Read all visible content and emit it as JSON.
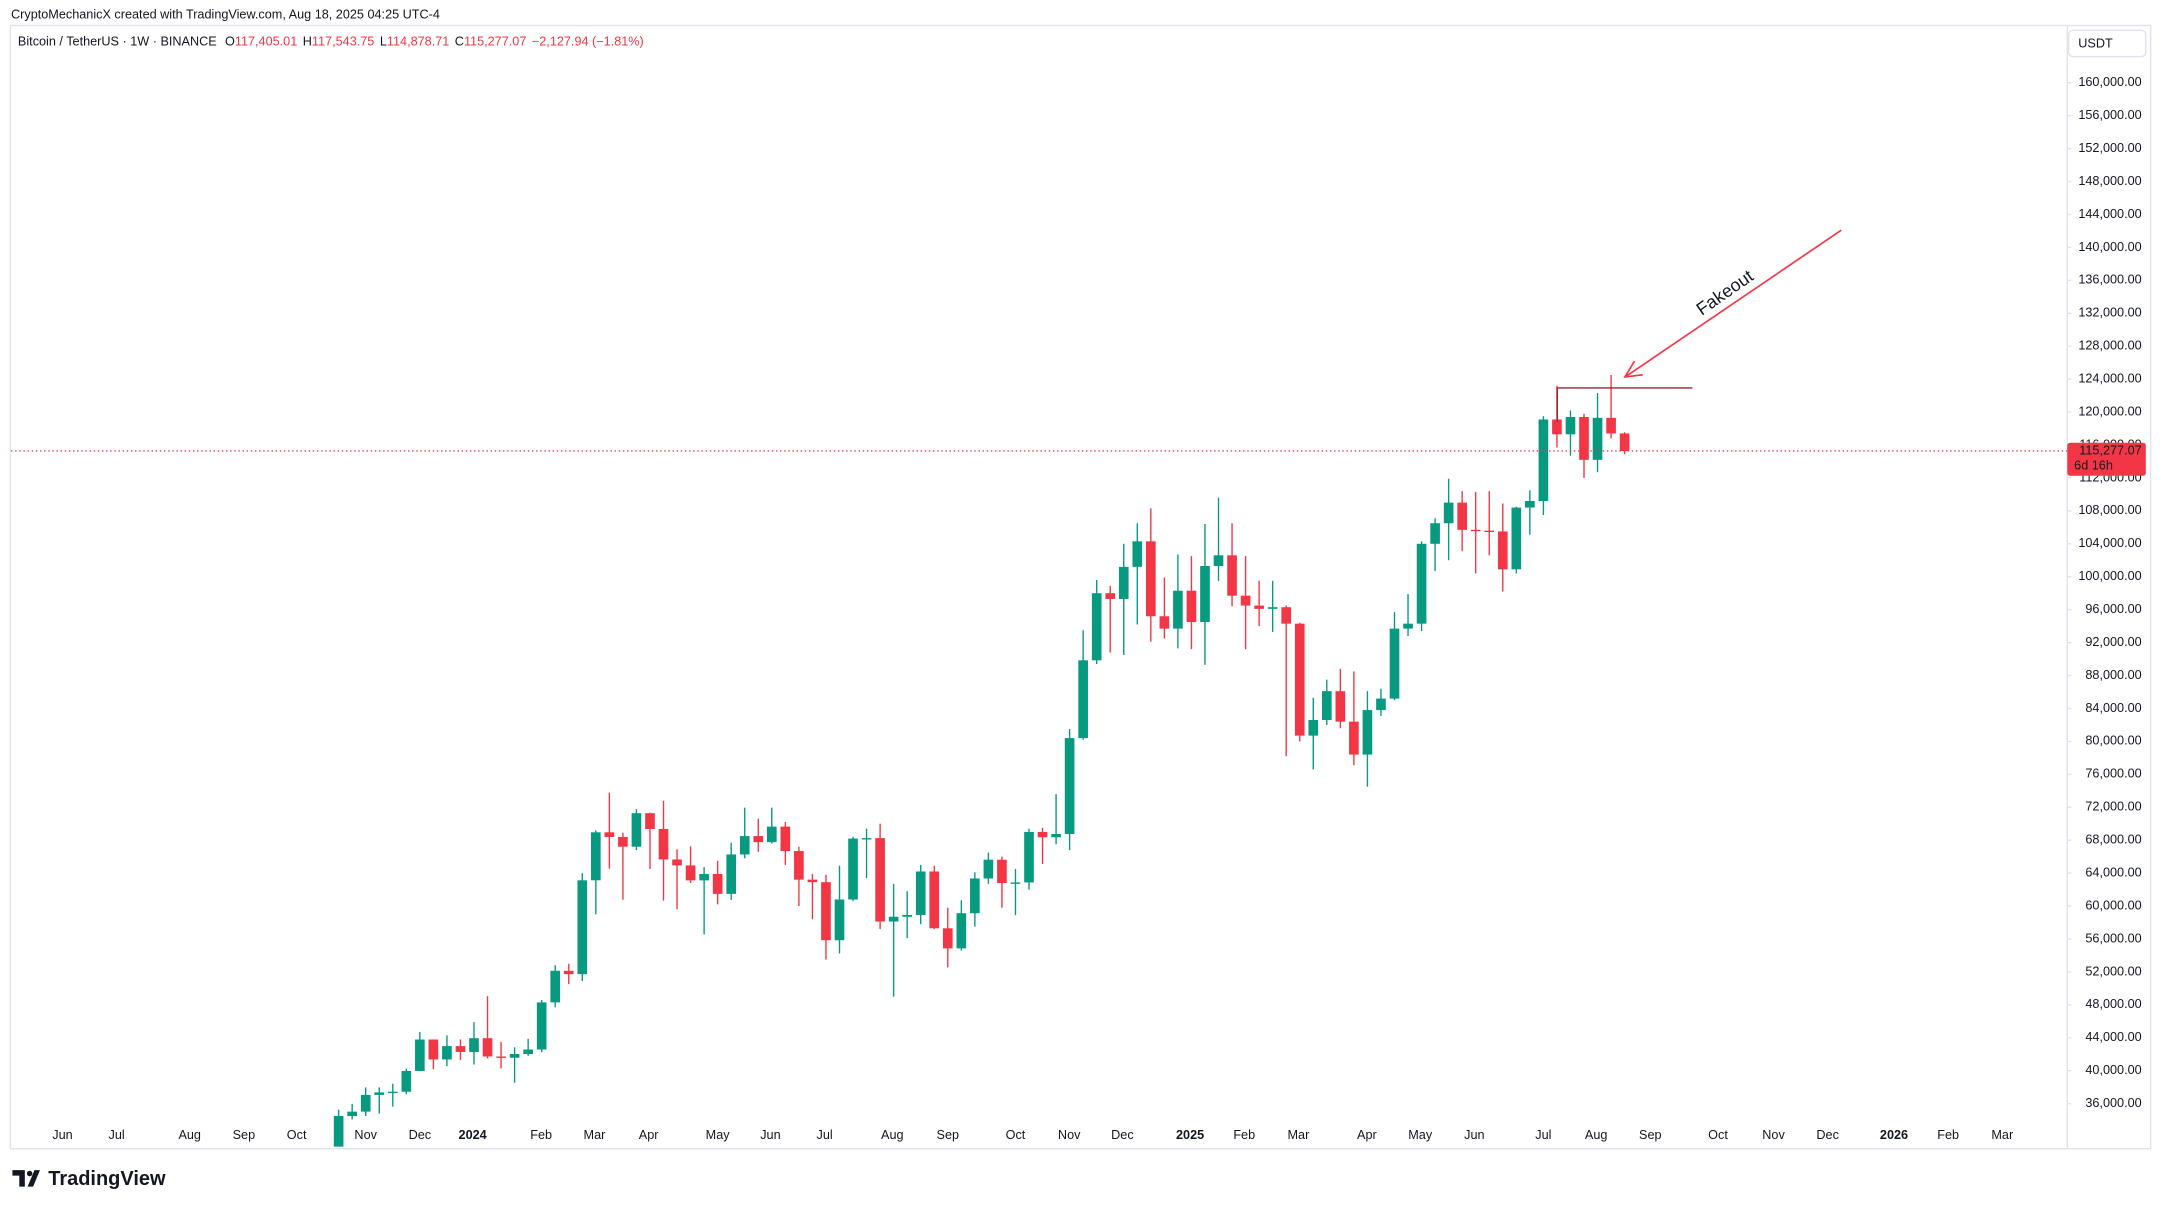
{
  "header": {
    "attribution": "CryptoMechanicX created with TradingView.com, Aug 18, 2025 04:25 UTC-4",
    "logo": "TradingView"
  },
  "chart_data": {
    "type": "candlestick",
    "title": "Bitcoin / TetherUS · 1W · BINANCE",
    "ohlc_legend": [
      {
        "key": "O",
        "value": "117,405.01"
      },
      {
        "key": "H",
        "value": "117,543.75"
      },
      {
        "key": "L",
        "value": "114,878.71"
      },
      {
        "key": "C",
        "value": "115,277.07"
      }
    ],
    "change": "−2,127.94 (−1.81%)",
    "currency": "USDT",
    "last_price_label": "115,277.07",
    "countdown": "6d 16h",
    "up_color": "#089981",
    "down_color": "#f23645",
    "annotations": [
      {
        "text": "Fakeout",
        "color": "#f23645"
      }
    ],
    "open": [
      29990,
      34500,
      35030,
      37060,
      37370,
      37450,
      39970,
      43790,
      41370,
      42990,
      42280,
      43950,
      41730,
      41580,
      42030,
      42580,
      48300,
      52140,
      51730,
      63130,
      68960,
      68390,
      67210,
      71280,
      69360,
      65660,
      64940,
      63120,
      63900,
      61480,
      66270,
      68500,
      67760,
      69650,
      66680,
      63210,
      62900,
      55850,
      60800,
      68200,
      68250,
      58120,
      58700,
      58920,
      64200,
      57300,
      54860,
      59130,
      63350,
      65630,
      62800,
      62870,
      69000,
      68360,
      68750,
      80400,
      89850,
      98000,
      97300,
      101200,
      104300,
      95200,
      93700,
      98300,
      94500,
      101300,
      102600,
      97700,
      96500,
      96100,
      96300,
      94300,
      80700,
      82600,
      86100,
      82400,
      78400,
      83800,
      85200,
      93700,
      94300,
      104000,
      106500,
      109000,
      105700,
      105600,
      105500,
      100900,
      108400,
      109200,
      119100,
      117300,
      119400,
      114200,
      119300,
      117405.01
    ],
    "high": [
      35280,
      35980,
      37970,
      37980,
      38420,
      40250,
      44700,
      43800,
      44300,
      43800,
      45900,
      49050,
      43500,
      42840,
      43880,
      48600,
      52820,
      52990,
      64000,
      69200,
      73780,
      68920,
      71770,
      71340,
      72800,
      66900,
      67250,
      64730,
      65500,
      67700,
      71950,
      70600,
      71950,
      70200,
      67200,
      63900,
      63800,
      64900,
      68400,
      69400,
      70000,
      62700,
      61800,
      65000,
      64900,
      59800,
      60700,
      64100,
      66500,
      66000,
      64500,
      69400,
      69500,
      73600,
      81500,
      93500,
      99600,
      98900,
      104000,
      106500,
      108300,
      99900,
      102700,
      102500,
      106400,
      109600,
      106500,
      102500,
      99500,
      99500,
      96500,
      94400,
      85300,
      87500,
      88800,
      88500,
      86100,
      86400,
      95700,
      97900,
      104300,
      107100,
      111900,
      110400,
      110300,
      110400,
      108900,
      108500,
      110500,
      119500,
      123200,
      120200,
      119800,
      122300,
      124500,
      117543.75
    ],
    "low": [
      29900,
      34100,
      34500,
      34800,
      35630,
      37150,
      39950,
      40200,
      40550,
      41300,
      40750,
      41500,
      40280,
      38550,
      41800,
      42250,
      47700,
      50520,
      50900,
      59000,
      64550,
      60770,
      66800,
      64500,
      60660,
      59600,
      62800,
      56550,
      60200,
      60750,
      65800,
      66600,
      67600,
      65000,
      60000,
      58400,
      53500,
      54250,
      60600,
      63400,
      57200,
      49000,
      56100,
      57800,
      57200,
      52550,
      54600,
      57500,
      62700,
      59800,
      58900,
      62000,
      65100,
      67500,
      66800,
      80200,
      89400,
      90800,
      90500,
      94200,
      92100,
      92500,
      91300,
      91200,
      89300,
      99500,
      96400,
      91200,
      94000,
      93300,
      78200,
      80000,
      76600,
      82000,
      81600,
      77100,
      74500,
      83100,
      85000,
      92800,
      93400,
      100700,
      102000,
      103100,
      100400,
      102600,
      98200,
      100400,
      105100,
      107500,
      115700,
      114700,
      112000,
      112700,
      116800,
      114878.71
    ],
    "close": [
      34500,
      35030,
      37060,
      37370,
      37450,
      39970,
      43790,
      41370,
      42990,
      42280,
      43950,
      41730,
      41580,
      42030,
      42580,
      48300,
      52140,
      51730,
      63130,
      68960,
      68390,
      67210,
      71280,
      69360,
      65660,
      64940,
      63120,
      63900,
      61480,
      66270,
      68500,
      67760,
      69650,
      66680,
      63210,
      62900,
      55850,
      60800,
      68200,
      68250,
      58120,
      58700,
      58920,
      64200,
      57300,
      54860,
      59130,
      63350,
      65630,
      62800,
      62870,
      69000,
      68360,
      68750,
      80400,
      89850,
      98000,
      97300,
      101200,
      104300,
      95200,
      93700,
      98300,
      94500,
      101300,
      102600,
      97700,
      96500,
      96100,
      96300,
      94300,
      80700,
      82600,
      86100,
      82400,
      78400,
      83800,
      85200,
      93700,
      94300,
      104000,
      106500,
      109000,
      105700,
      105600,
      105500,
      100900,
      108400,
      109200,
      119100,
      117300,
      119400,
      114200,
      119300,
      117400,
      115277.07
    ],
    "xlim": [
      -24.2,
      127.7
    ],
    "xticks": [
      {
        "value": -20.4,
        "label": "Jun"
      },
      {
        "value": -16.4,
        "label": "Jul"
      },
      {
        "value": -11.0,
        "label": "Aug"
      },
      {
        "value": -7.0,
        "label": "Sep"
      },
      {
        "value": -3.1,
        "label": "Oct"
      },
      {
        "value": 2.0,
        "label": "Nov"
      },
      {
        "value": 6.0,
        "label": "Dec"
      },
      {
        "value": 9.9,
        "label": "2024"
      },
      {
        "value": 14.96,
        "label": "Feb"
      },
      {
        "value": 18.9,
        "label": "Mar"
      },
      {
        "value": 22.9,
        "label": "Apr"
      },
      {
        "value": 28.0,
        "label": "May"
      },
      {
        "value": 31.9,
        "label": "Jun"
      },
      {
        "value": 35.9,
        "label": "Jul"
      },
      {
        "value": 40.9,
        "label": "Aug"
      },
      {
        "value": 45.0,
        "label": "Sep"
      },
      {
        "value": 50.0,
        "label": "Oct"
      },
      {
        "value": 53.97,
        "label": "Nov"
      },
      {
        "value": 57.9,
        "label": "Dec"
      },
      {
        "value": 62.9,
        "label": "2025"
      },
      {
        "value": 66.9,
        "label": "Feb"
      },
      {
        "value": 70.9,
        "label": "Mar"
      },
      {
        "value": 75.96,
        "label": "Apr"
      },
      {
        "value": 79.9,
        "label": "May"
      },
      {
        "value": 83.9,
        "label": "Jun"
      },
      {
        "value": 89.0,
        "label": "Jul"
      },
      {
        "value": 92.9,
        "label": "Aug"
      },
      {
        "value": 96.9,
        "label": "Sep"
      },
      {
        "value": 101.9,
        "label": "Oct"
      },
      {
        "value": 106.0,
        "label": "Nov"
      },
      {
        "value": 110.0,
        "label": "Dec"
      },
      {
        "value": 114.9,
        "label": "2026"
      },
      {
        "value": 118.9,
        "label": "Feb"
      },
      {
        "value": 122.9,
        "label": "Mar"
      }
    ],
    "ylim": [
      30780,
      166870
    ],
    "yticks": [
      {
        "value": 36000,
        "label": "36,000.00"
      },
      {
        "value": 40000,
        "label": "40,000.00"
      },
      {
        "value": 44000,
        "label": "44,000.00"
      },
      {
        "value": 48000,
        "label": "48,000.00"
      },
      {
        "value": 52000,
        "label": "52,000.00"
      },
      {
        "value": 56000,
        "label": "56,000.00"
      },
      {
        "value": 60000,
        "label": "60,000.00"
      },
      {
        "value": 64000,
        "label": "64,000.00"
      },
      {
        "value": 68000,
        "label": "68,000.00"
      },
      {
        "value": 72000,
        "label": "72,000.00"
      },
      {
        "value": 76000,
        "label": "76,000.00"
      },
      {
        "value": 80000,
        "label": "80,000.00"
      },
      {
        "value": 84000,
        "label": "84,000.00"
      },
      {
        "value": 88000,
        "label": "88,000.00"
      },
      {
        "value": 92000,
        "label": "92,000.00"
      },
      {
        "value": 96000,
        "label": "96,000.00"
      },
      {
        "value": 100000,
        "label": "100,000.00"
      },
      {
        "value": 104000,
        "label": "104,000.00"
      },
      {
        "value": 108000,
        "label": "108,000.00"
      },
      {
        "value": 112000,
        "label": "112,000.00"
      },
      {
        "value": 116000,
        "label": "116,000.00"
      },
      {
        "value": 120000,
        "label": "120,000.00"
      },
      {
        "value": 124000,
        "label": "124,000.00"
      },
      {
        "value": 128000,
        "label": "128,000.00"
      },
      {
        "value": 132000,
        "label": "132,000.00"
      },
      {
        "value": 136000,
        "label": "136,000.00"
      },
      {
        "value": 140000,
        "label": "140,000.00"
      },
      {
        "value": 144000,
        "label": "144,000.00"
      },
      {
        "value": 148000,
        "label": "148,000.00"
      },
      {
        "value": 152000,
        "label": "152,000.00"
      },
      {
        "value": 156000,
        "label": "156,000.00"
      },
      {
        "value": 160000,
        "label": "160,000.00"
      }
    ],
    "grid": false
  }
}
